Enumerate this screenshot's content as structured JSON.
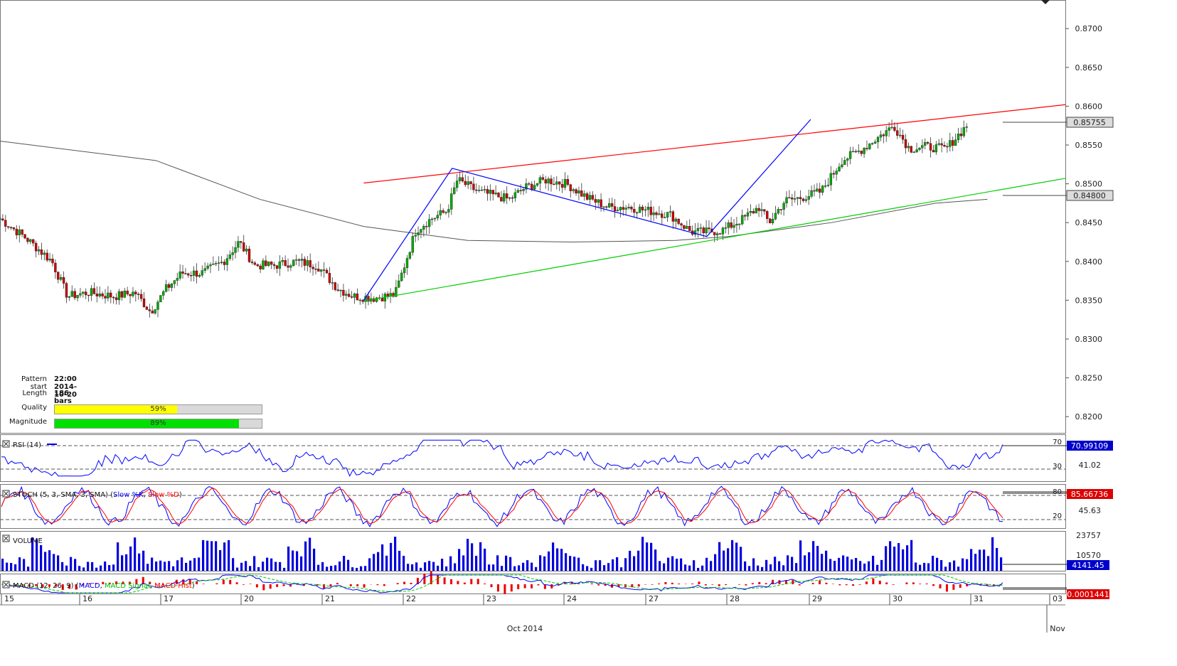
{
  "pattern_info": {
    "pattern_start_label": "Pattern start",
    "pattern_start_value": "22:00 2014-10-20",
    "length_label": "Length",
    "length_value": "186 bars",
    "quality_label": "Quality",
    "quality_text": "59%",
    "quality_value": 59,
    "quality_color": "#ffff00",
    "magnitude_label": "Magnitude",
    "magnitude_text": "89%",
    "magnitude_value": 89,
    "magnitude_color": "#00e000"
  },
  "chart_data": [
    {
      "name": "price",
      "type": "candlestick",
      "ylim": [
        0.818,
        0.8735
      ],
      "y_ticks": [
        "0.8700",
        "0.8650",
        "0.8600",
        "0.8550",
        "0.8500",
        "0.8450",
        "0.8400",
        "0.8350",
        "0.8300",
        "0.8250",
        "0.8200"
      ],
      "last_price_label": "0.85755",
      "ma_label": "0.84800",
      "colors": {
        "up": "#00aa00",
        "down": "#cc0000",
        "moving_average": "#555555",
        "resistance": "#ff0000",
        "support": "#00cc00",
        "zigzag": "#0000ff"
      },
      "resistance_line": [
        [
          21,
          0.8501
        ],
        [
          34.5,
          0.8602
        ]
      ],
      "support_line": [
        [
          21,
          0.8349
        ],
        [
          34.5,
          0.8507
        ]
      ],
      "zigzag": [
        [
          21,
          0.835
        ],
        [
          22.7,
          0.852
        ],
        [
          27.6,
          0.8432
        ],
        [
          29.6,
          0.8583
        ]
      ],
      "moving_average": [
        [
          14,
          0.8555
        ],
        [
          17,
          0.853
        ],
        [
          19,
          0.848
        ],
        [
          21,
          0.8445
        ],
        [
          23,
          0.8427
        ],
        [
          25,
          0.8425
        ],
        [
          27,
          0.8427
        ],
        [
          28,
          0.8432
        ],
        [
          30,
          0.845
        ],
        [
          32,
          0.8475
        ],
        [
          33,
          0.848
        ]
      ],
      "anchors": [
        [
          14,
          0.8455
        ],
        [
          14.5,
          0.843
        ],
        [
          15,
          0.84
        ],
        [
          15.3,
          0.8355
        ],
        [
          15.7,
          0.836
        ],
        [
          16.2,
          0.8355
        ],
        [
          16.6,
          0.836
        ],
        [
          16.9,
          0.8335
        ],
        [
          17.2,
          0.8365
        ],
        [
          17.5,
          0.8385
        ],
        [
          17.9,
          0.8385
        ],
        [
          18.3,
          0.84
        ],
        [
          18.6,
          0.8425
        ],
        [
          18.9,
          0.8395
        ],
        [
          19.3,
          0.8395
        ],
        [
          19.7,
          0.84
        ],
        [
          20.1,
          0.8395
        ],
        [
          20.5,
          0.8365
        ],
        [
          20.8,
          0.8355
        ],
        [
          21.2,
          0.8353
        ],
        [
          21.6,
          0.8357
        ],
        [
          22.0,
          0.844
        ],
        [
          22.3,
          0.8455
        ],
        [
          22.6,
          0.8465
        ],
        [
          22.8,
          0.8505
        ],
        [
          23.2,
          0.849
        ],
        [
          23.5,
          0.8485
        ],
        [
          23.8,
          0.848
        ],
        [
          24.1,
          0.8495
        ],
        [
          24.5,
          0.8505
        ],
        [
          24.9,
          0.85
        ],
        [
          25.3,
          0.8482
        ],
        [
          25.7,
          0.847
        ],
        [
          26.1,
          0.847
        ],
        [
          26.5,
          0.8465
        ],
        [
          26.9,
          0.846
        ],
        [
          27.3,
          0.8438
        ],
        [
          27.6,
          0.8438
        ],
        [
          27.9,
          0.844
        ],
        [
          28.3,
          0.8455
        ],
        [
          28.6,
          0.847
        ],
        [
          28.8,
          0.845
        ],
        [
          29.1,
          0.8478
        ],
        [
          29.4,
          0.8482
        ],
        [
          29.8,
          0.849
        ],
        [
          30.2,
          0.853
        ],
        [
          30.6,
          0.8545
        ],
        [
          31.0,
          0.8565
        ],
        [
          31.2,
          0.8575
        ],
        [
          31.5,
          0.8545
        ],
        [
          31.8,
          0.8548
        ],
        [
          32.2,
          0.8545
        ],
        [
          32.4,
          0.856
        ],
        [
          32.6,
          0.8575
        ]
      ]
    },
    {
      "name": "rsi",
      "label": "RSI (14)",
      "value_label": "70.99109",
      "mid_label": "41.02",
      "levels": [
        "70",
        "30"
      ],
      "ylim": [
        0,
        100
      ]
    },
    {
      "name": "stoch",
      "label_prefix": "STOCH (5, 3, SMA, 3, SMA) (",
      "label_k": "Slow %K",
      "label_sep": ", ",
      "label_d": "Slow %D",
      "label_suffix": ")",
      "value_label": "85.66736",
      "mid_label": "45.63",
      "levels": [
        "80",
        "20"
      ],
      "ylim": [
        0,
        100
      ]
    },
    {
      "name": "volume",
      "label": "VOLUME",
      "top_label": "23757",
      "mid_label": "10570",
      "value_label": "4141.45"
    },
    {
      "name": "macd",
      "label_prefix": "MACD (12, 26, 9) (",
      "label_macd": "MACD",
      "label_sep1": ", ",
      "label_signal": "MACD Signal",
      "label_sep2": ", ",
      "label_hist": "MACD Hist",
      "label_suffix": ")",
      "value_label": "0.0001441"
    }
  ],
  "x_axis": {
    "day_labels": [
      "15",
      "16",
      "17",
      "20",
      "21",
      "22",
      "23",
      "24",
      "27",
      "28",
      "29",
      "30",
      "31",
      "03"
    ],
    "month_label": "Oct 2014",
    "nov_label": "Nov"
  }
}
